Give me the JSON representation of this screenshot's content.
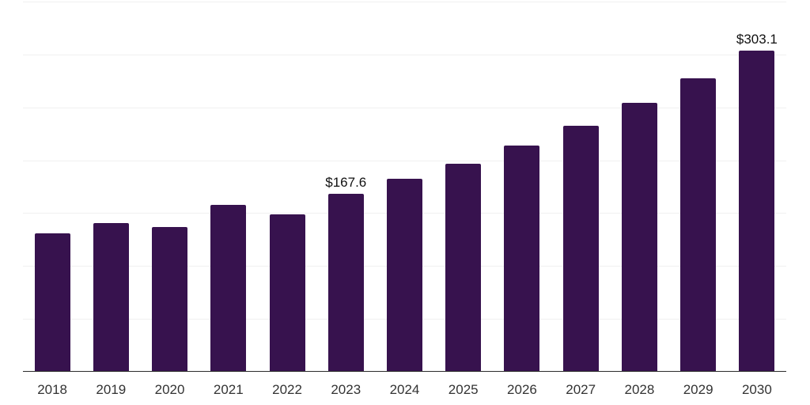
{
  "chart_data": {
    "type": "bar",
    "categories": [
      "2018",
      "2019",
      "2020",
      "2021",
      "2022",
      "2023",
      "2024",
      "2025",
      "2026",
      "2027",
      "2028",
      "2029",
      "2030"
    ],
    "series": [
      {
        "name": "value-usd",
        "values": [
          130.0,
          139.8,
          136.3,
          157.2,
          148.3,
          167.6,
          181.6,
          196.0,
          213.2,
          231.9,
          253.7,
          276.9,
          303.1
        ]
      }
    ],
    "data_labels": [
      {
        "category": "2023",
        "text": "$167.6"
      },
      {
        "category": "2030",
        "text": "$303.1"
      }
    ],
    "y_axis": {
      "min": 0,
      "max": 350,
      "gridline_step": 50,
      "labels_visible": false
    },
    "grid": true,
    "legend": "none",
    "colors": {
      "bar": "#37124E",
      "gridline": "#F0F0F0",
      "axis": "#2B2B2B",
      "tick_label": "#333333",
      "data_label": "#111111",
      "background": "#FFFFFF"
    }
  }
}
